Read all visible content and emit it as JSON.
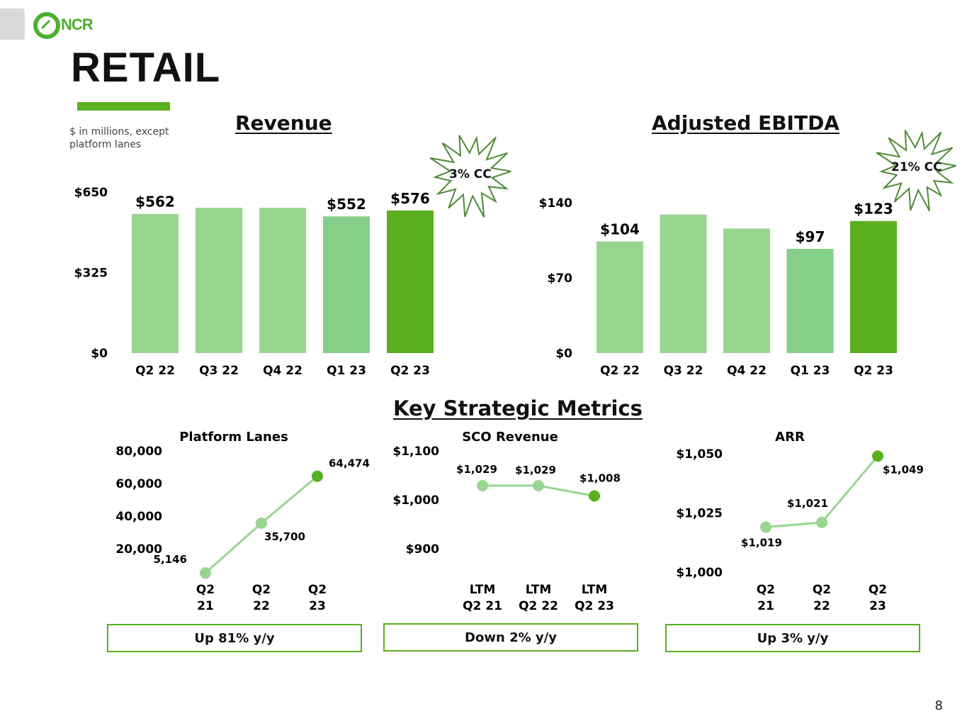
{
  "header": {
    "logo_text": "NCR",
    "title": "RETAIL",
    "note": "$ in millions, except platform lanes",
    "page_number": "8"
  },
  "colors": {
    "light": "#98d690",
    "light_alt": "#85cf88",
    "accent": "#5ab01f",
    "burst_stroke": "#4e8a38"
  },
  "metrics_title": "Key Strategic Metrics",
  "chart_data": [
    {
      "id": "revenue",
      "type": "bar",
      "title": "Revenue",
      "categories": [
        "Q2 22",
        "Q3 22",
        "Q4 22",
        "Q1 23",
        "Q2 23"
      ],
      "values": [
        562,
        587,
        587,
        552,
        576
      ],
      "labels": [
        "$562",
        "",
        "",
        "$552",
        "$576"
      ],
      "ylim": [
        0,
        650
      ],
      "yticks": [
        0,
        325,
        650
      ],
      "ytick_labels": [
        "$0",
        "$325",
        "$650"
      ],
      "callout": "3% CC"
    },
    {
      "id": "ebitda",
      "type": "bar",
      "title": "Adjusted EBITDA",
      "categories": [
        "Q2 22",
        "Q3 22",
        "Q4 22",
        "Q1 23",
        "Q2 23"
      ],
      "values": [
        104,
        129,
        116,
        97,
        123
      ],
      "labels": [
        "$104",
        "",
        "",
        "$97",
        "$123"
      ],
      "ylim": [
        0,
        140
      ],
      "yticks": [
        0,
        70,
        140
      ],
      "ytick_labels": [
        "$0",
        "$70",
        "$140"
      ],
      "callout": "21% CC"
    },
    {
      "id": "lanes",
      "type": "line",
      "title": "Platform Lanes",
      "categories": [
        [
          "Q2",
          "21"
        ],
        [
          "Q2",
          "22"
        ],
        [
          "Q2",
          "23"
        ]
      ],
      "values": [
        5146,
        35700,
        64474
      ],
      "labels": [
        "5,146",
        "35,700",
        "64,474"
      ],
      "ylim": [
        0,
        80000
      ],
      "yticks": [
        20000,
        40000,
        60000,
        80000
      ],
      "ytick_labels": [
        "20,000",
        "40,000",
        "60,000",
        "80,000"
      ],
      "summary": "Up 81% y/y"
    },
    {
      "id": "sco",
      "type": "line",
      "title": "SCO Revenue",
      "categories": [
        [
          "LTM",
          "Q2 21"
        ],
        [
          "LTM",
          "Q2 22"
        ],
        [
          "LTM",
          "Q2 23"
        ]
      ],
      "values": [
        1029,
        1029,
        1008
      ],
      "labels": [
        "$1,029",
        "$1,029",
        "$1,008"
      ],
      "ylim": [
        900,
        1100
      ],
      "yticks": [
        900,
        1000,
        1100
      ],
      "ytick_labels": [
        "$900",
        "$1,000",
        "$1,100"
      ],
      "summary": "Down 2% y/y"
    },
    {
      "id": "arr",
      "type": "line",
      "title": "ARR",
      "categories": [
        [
          "Q2",
          "21"
        ],
        [
          "Q2",
          "22"
        ],
        [
          "Q2",
          "23"
        ]
      ],
      "values": [
        1019,
        1021,
        1049
      ],
      "labels": [
        "$1,019",
        "$1,021",
        "$1,049"
      ],
      "ylim": [
        1000,
        1050
      ],
      "yticks": [
        1000,
        1025,
        1050
      ],
      "ytick_labels": [
        "$1,000",
        "$1,025",
        "$1,050"
      ],
      "summary": "Up 3% y/y"
    }
  ]
}
